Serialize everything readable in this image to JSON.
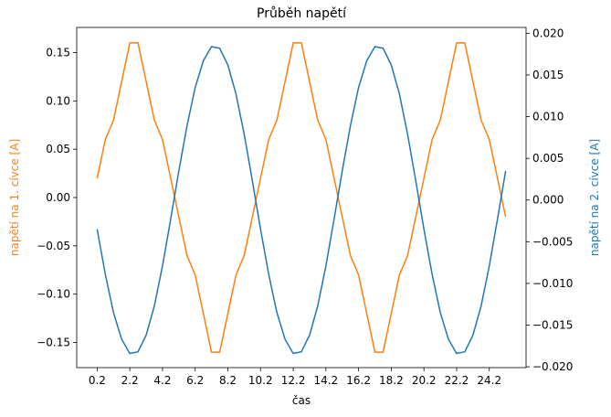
{
  "chart_data": {
    "type": "line",
    "title": "Průběh napětí",
    "x_label": "čas",
    "y_label": "napětí na 1. cívce [A]",
    "y2_label": "napětí na 2. cívce [A]",
    "x": [
      0.2,
      0.7,
      1.2,
      1.7,
      2.2,
      2.7,
      3.2,
      3.7,
      4.2,
      4.7,
      5.2,
      5.7,
      6.2,
      6.7,
      7.2,
      7.7,
      8.2,
      8.7,
      9.2,
      9.7,
      10.2,
      10.7,
      11.2,
      11.7,
      12.2,
      12.7,
      13.2,
      13.7,
      14.2,
      14.7,
      15.2,
      15.7,
      16.2,
      16.7,
      17.2,
      17.7,
      18.2,
      18.7,
      19.2,
      19.7,
      20.2,
      20.7,
      21.2,
      21.7,
      22.2,
      22.7,
      23.2,
      23.7,
      24.2,
      24.7,
      25.2
    ],
    "series": [
      {
        "name": "napětí na 1. cívce [A]",
        "color": "#ff7f0e",
        "axis": "y",
        "values": [
          0.02,
          0.06,
          0.08,
          0.12,
          0.16,
          0.16,
          0.12,
          0.08,
          0.06,
          0.02,
          -0.02,
          -0.06,
          -0.08,
          -0.12,
          -0.16,
          -0.16,
          -0.12,
          -0.08,
          -0.06,
          -0.02,
          0.02,
          0.06,
          0.08,
          0.12,
          0.16,
          0.16,
          0.12,
          0.08,
          0.06,
          0.02,
          -0.02,
          -0.06,
          -0.08,
          -0.12,
          -0.16,
          -0.16,
          -0.12,
          -0.08,
          -0.06,
          -0.02,
          0.02,
          0.06,
          0.08,
          0.12,
          0.16,
          0.16,
          0.12,
          0.08,
          0.06,
          0.02,
          -0.02
        ]
      },
      {
        "name": "napětí na 2. cívce [A]",
        "color": "#1f77b4",
        "axis": "y2",
        "values": [
          -0.0035,
          -0.0089,
          -0.0135,
          -0.0167,
          -0.0184,
          -0.0182,
          -0.0162,
          -0.0127,
          -0.0079,
          -0.0023,
          0.0035,
          0.0089,
          0.0135,
          0.0167,
          0.0184,
          0.0182,
          0.0162,
          0.0127,
          0.0079,
          0.0023,
          -0.0035,
          -0.0089,
          -0.0135,
          -0.0167,
          -0.0184,
          -0.0182,
          -0.0162,
          -0.0127,
          -0.0079,
          -0.0023,
          0.0035,
          0.0089,
          0.0135,
          0.0167,
          0.0184,
          0.0182,
          0.0162,
          0.0127,
          0.0079,
          0.0023,
          -0.0035,
          -0.0089,
          -0.0135,
          -0.0167,
          -0.0184,
          -0.0182,
          -0.0162,
          -0.0127,
          -0.0079,
          -0.0023,
          0.0035
        ]
      }
    ],
    "xlim": [
      -1.05,
      26.45
    ],
    "xticks": [
      0.2,
      2.2,
      4.2,
      6.2,
      8.2,
      10.2,
      12.2,
      14.2,
      16.2,
      18.2,
      20.2,
      22.2,
      24.2
    ],
    "ylim": [
      -0.176,
      0.176
    ],
    "yticks": [
      {
        "value": -0.15,
        "label": "−0.15"
      },
      {
        "value": -0.1,
        "label": "−0.10"
      },
      {
        "value": -0.05,
        "label": "−0.05"
      },
      {
        "value": 0,
        "label": "0.00"
      },
      {
        "value": 0.05,
        "label": "0.05"
      },
      {
        "value": 0.1,
        "label": "0.10"
      },
      {
        "value": 0.15,
        "label": "0.15"
      }
    ],
    "y2lim": [
      -0.0201,
      0.0207
    ],
    "y2ticks": [
      {
        "value": -0.02,
        "label": "−0.020"
      },
      {
        "value": -0.015,
        "label": "−0.015"
      },
      {
        "value": -0.01,
        "label": "−0.010"
      },
      {
        "value": -0.005,
        "label": "−0.005"
      },
      {
        "value": 0,
        "label": "0.000"
      },
      {
        "value": 0.005,
        "label": "0.005"
      },
      {
        "value": 0.01,
        "label": "0.010"
      },
      {
        "value": 0.015,
        "label": "0.015"
      },
      {
        "value": 0.02,
        "label": "0.020"
      }
    ],
    "grid": false
  }
}
